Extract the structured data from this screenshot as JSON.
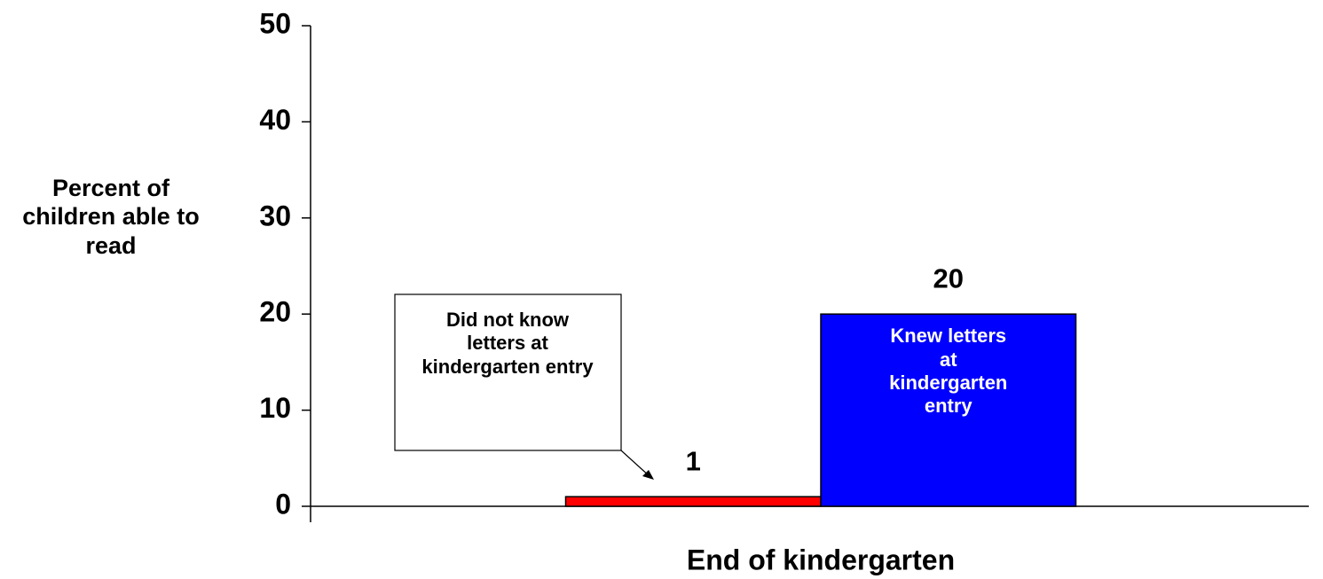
{
  "chart_data": {
    "type": "bar",
    "ylabel": "Percent of children able to read",
    "xlabel": "End of kindergarten",
    "categories": [
      "End of kindergarten"
    ],
    "series": [
      {
        "name": "Did not know letters at kindergarten entry",
        "color": "#ff0000",
        "values": [
          1
        ]
      },
      {
        "name": "Knew letters at kindergarten entry",
        "color": "#0000ff",
        "values": [
          20
        ]
      }
    ],
    "ylim": [
      0,
      50
    ],
    "yticks": [
      0,
      10,
      20,
      30,
      40,
      50
    ],
    "grid": false
  }
}
